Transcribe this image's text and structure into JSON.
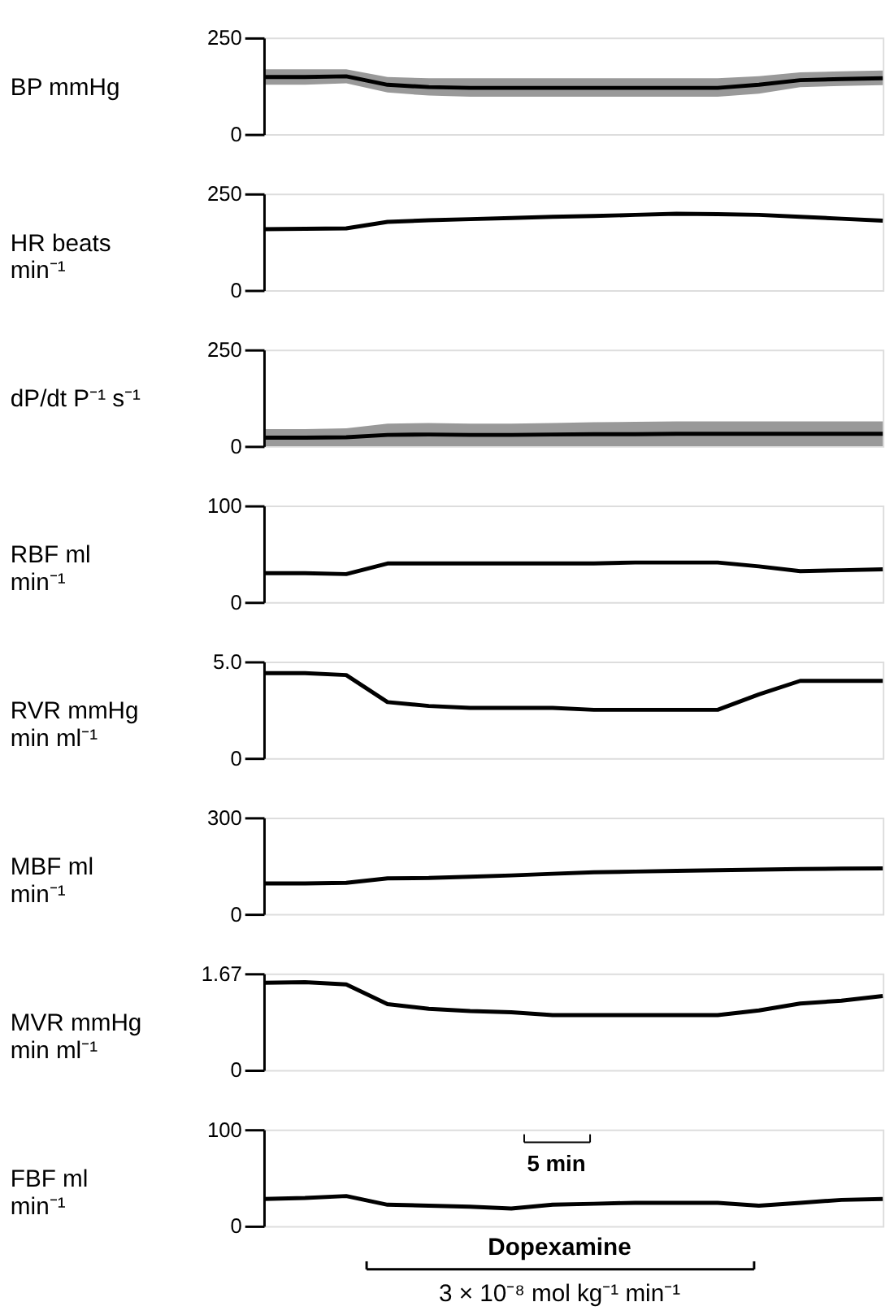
{
  "chart_data": [
    {
      "type": "line",
      "ylabel": "BP mmHg",
      "categories": [
        null,
        null,
        null,
        null,
        null,
        null,
        null,
        null,
        null,
        null,
        null,
        null,
        null,
        null,
        null,
        null
      ],
      "ylim": [
        0,
        250
      ],
      "yticks": [
        0,
        250
      ],
      "tick_labels": "y",
      "grid": false,
      "series": [
        {
          "color": "#000000",
          "values": [
            148,
            148,
            150,
            128,
            122,
            120,
            120,
            120,
            120,
            120,
            120,
            120,
            128,
            140,
            143,
            145
          ],
          "lower": [
            128,
            128,
            132,
            108,
            100,
            97,
            97,
            97,
            97,
            97,
            97,
            97,
            105,
            122,
            125,
            127
          ],
          "upper": [
            168,
            168,
            168,
            148,
            145,
            145,
            145,
            145,
            145,
            145,
            145,
            145,
            150,
            160,
            163,
            165
          ]
        }
      ]
    },
    {
      "type": "line",
      "ylabel": "HR beats min⁻¹",
      "categories": [
        null,
        null,
        null,
        null,
        null,
        null,
        null,
        null,
        null,
        null,
        null,
        null,
        null,
        null,
        null,
        null
      ],
      "ylim": [
        0,
        250
      ],
      "yticks": [
        0,
        250
      ],
      "tick_labels": "y",
      "grid": false,
      "series": [
        {
          "color": "#000000",
          "values": [
            158,
            159,
            160,
            177,
            181,
            184,
            187,
            190,
            192,
            195,
            198,
            197,
            195,
            190,
            185,
            180
          ]
        }
      ]
    },
    {
      "type": "line",
      "ylabel": "dP/dt P⁻¹ s⁻¹",
      "categories": [
        null,
        null,
        null,
        null,
        null,
        null,
        null,
        null,
        null,
        null,
        null,
        null,
        null,
        null,
        null,
        null
      ],
      "ylim": [
        0,
        250
      ],
      "yticks": [
        0,
        250
      ],
      "tick_labels": "y",
      "grid": false,
      "series": [
        {
          "color": "#000000",
          "values": [
            22,
            22,
            23,
            29,
            30,
            29,
            29,
            30,
            31,
            31,
            32,
            32,
            32,
            32,
            32,
            32
          ],
          "lower": [
            0,
            0,
            0,
            0,
            0,
            0,
            0,
            0,
            0,
            0,
            0,
            0,
            0,
            0,
            0,
            0
          ],
          "upper": [
            44,
            44,
            46,
            58,
            60,
            58,
            58,
            60,
            62,
            63,
            64,
            64,
            64,
            64,
            64,
            64
          ]
        }
      ]
    },
    {
      "type": "line",
      "ylabel": "RBF ml min⁻¹",
      "categories": [
        null,
        null,
        null,
        null,
        null,
        null,
        null,
        null,
        null,
        null,
        null,
        null,
        null,
        null,
        null,
        null
      ],
      "ylim": [
        0,
        100
      ],
      "yticks": [
        0,
        100
      ],
      "tick_labels": "y",
      "grid": false,
      "series": [
        {
          "color": "#000000",
          "values": [
            30,
            30,
            29,
            40,
            40,
            40,
            40,
            40,
            40,
            41,
            41,
            41,
            37,
            32,
            33,
            34
          ]
        }
      ]
    },
    {
      "type": "line",
      "ylabel": "RVR mmHg min ml⁻¹",
      "categories": [
        null,
        null,
        null,
        null,
        null,
        null,
        null,
        null,
        null,
        null,
        null,
        null,
        null,
        null,
        null,
        null
      ],
      "ylim": [
        0,
        5.0
      ],
      "yticks": [
        0,
        {
          "value": 5,
          "label": "5.0"
        }
      ],
      "tick_labels": "y",
      "grid": false,
      "series": [
        {
          "color": "#000000",
          "values": [
            4.4,
            4.4,
            4.3,
            2.9,
            2.7,
            2.6,
            2.6,
            2.6,
            2.5,
            2.5,
            2.5,
            2.5,
            3.3,
            4.0,
            4.0,
            4.0
          ]
        }
      ]
    },
    {
      "type": "line",
      "ylabel": "MBF ml min⁻¹",
      "categories": [
        null,
        null,
        null,
        null,
        null,
        null,
        null,
        null,
        null,
        null,
        null,
        null,
        null,
        null,
        null,
        null
      ],
      "ylim": [
        0,
        300
      ],
      "yticks": [
        0,
        300
      ],
      "tick_labels": "y",
      "grid": false,
      "series": [
        {
          "color": "#000000",
          "values": [
            95,
            95,
            97,
            111,
            112,
            116,
            120,
            125,
            130,
            132,
            134,
            136,
            138,
            140,
            141,
            142
          ]
        }
      ]
    },
    {
      "type": "line",
      "ylabel": "MVR mmHg min ml⁻¹",
      "categories": [
        null,
        null,
        null,
        null,
        null,
        null,
        null,
        null,
        null,
        null,
        null,
        null,
        null,
        null,
        null,
        null
      ],
      "ylim": [
        0,
        1.67
      ],
      "yticks": [
        0,
        1.67
      ],
      "tick_labels": "y",
      "grid": false,
      "series": [
        {
          "color": "#000000",
          "values": [
            1.51,
            1.52,
            1.48,
            1.14,
            1.06,
            1.02,
            1.0,
            0.95,
            0.95,
            0.95,
            0.95,
            0.95,
            1.03,
            1.15,
            1.2,
            1.28
          ]
        }
      ]
    },
    {
      "type": "line",
      "ylabel": "FBF ml min⁻¹",
      "categories": [
        null,
        null,
        null,
        null,
        null,
        null,
        null,
        null,
        null,
        null,
        null,
        null,
        null,
        null,
        null,
        null
      ],
      "ylim": [
        0,
        100
      ],
      "yticks": [
        0,
        100
      ],
      "tick_labels": "y",
      "grid": false,
      "series": [
        {
          "color": "#000000",
          "values": [
            28,
            29,
            31,
            22,
            21,
            20,
            18,
            22,
            23,
            24,
            24,
            24,
            21,
            24,
            27,
            28
          ]
        }
      ],
      "annotations": [
        "5 min",
        "Dopexamine",
        "3 × 10⁻⁸ mol kg⁻¹ min⁻¹"
      ]
    }
  ]
}
